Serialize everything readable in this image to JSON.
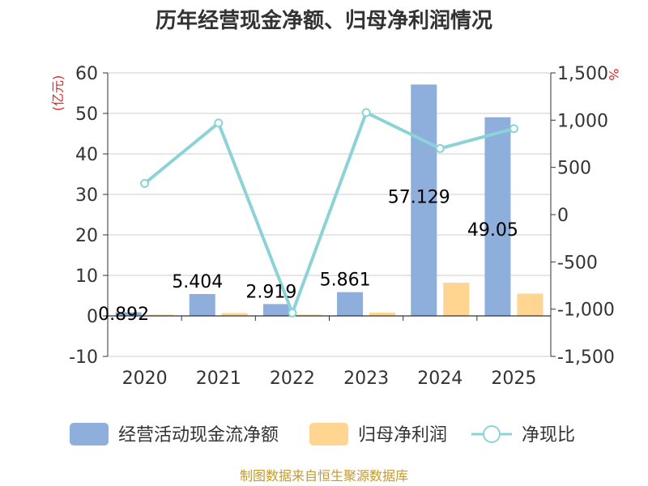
{
  "chart_data": {
    "type": "bar",
    "title": "历年经营现金净额、归母净利润情况",
    "categories": [
      "2020",
      "2021",
      "2022",
      "2023",
      "2024",
      "2025"
    ],
    "left_axis": {
      "unit": "(亿元)",
      "ylim": [
        -10,
        60
      ],
      "ticks": [
        "60",
        "50",
        "40",
        "30",
        "20",
        "10",
        "0",
        "-10"
      ],
      "tick_values": [
        60,
        50,
        40,
        30,
        20,
        10,
        0,
        -10
      ]
    },
    "right_axis": {
      "unit": "%",
      "ylim": [
        -1500,
        1500
      ],
      "ticks": [
        "1,500",
        "1,000",
        "500",
        "0",
        "-500",
        "-1,000",
        "-1,500"
      ],
      "tick_values": [
        1500,
        1000,
        500,
        0,
        -500,
        -1000,
        -1500
      ]
    },
    "series": [
      {
        "name": "经营活动现金流净额",
        "type": "bar",
        "axis": "left",
        "color": "#8eaedc",
        "values": [
          0.892,
          5.404,
          2.919,
          5.861,
          57.129,
          49.05
        ],
        "labels": [
          "0.892",
          "5.404",
          "2.919",
          "5.861",
          "57.129",
          "49.05"
        ]
      },
      {
        "name": "归母净利润",
        "type": "bar",
        "axis": "left",
        "color": "#ffd591",
        "values": [
          0.3,
          0.7,
          0.3,
          0.8,
          8.2,
          5.5
        ]
      },
      {
        "name": "净现比",
        "type": "line",
        "axis": "right",
        "color": "#8cd3d8",
        "values": [
          330,
          970,
          -1040,
          1080,
          700,
          910
        ]
      }
    ],
    "grid": true,
    "legend": "bottom",
    "source": "制图数据来自恒生聚源数据库"
  }
}
